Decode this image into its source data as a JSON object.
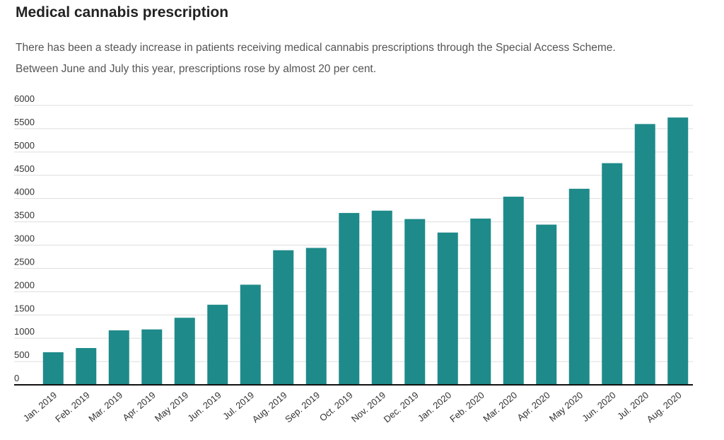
{
  "header": {
    "title": "Medical cannabis prescription",
    "subtitle_line1": "There has been a steady increase in patients receiving medical cannabis prescriptions through the Special Access Scheme.",
    "subtitle_line2": "Between June and July this year, prescriptions rose by almost 20 per cent."
  },
  "colors": {
    "bar": "#1f8a8a",
    "grid": "#dddddd",
    "axis": "#111111"
  },
  "chart_data": {
    "type": "bar",
    "title": "Medical cannabis prescription",
    "xlabel": "",
    "ylabel": "",
    "ylim": [
      0,
      6000
    ],
    "yticks": [
      0,
      500,
      1000,
      1500,
      2000,
      2500,
      3000,
      3500,
      4000,
      4500,
      5000,
      5500,
      6000
    ],
    "grid": true,
    "categories": [
      "Jan. 2019",
      "Feb. 2019",
      "Mar. 2019",
      "Apr. 2019",
      "May 2019",
      "Jun. 2019",
      "Jul. 2019",
      "Aug. 2019",
      "Sep. 2019",
      "Oct. 2019",
      "Nov. 2019",
      "Dec. 2019",
      "Jan. 2020",
      "Feb. 2020",
      "Mar. 2020",
      "Apr. 2020",
      "May 2020",
      "Jun. 2020",
      "Jul. 2020",
      "Aug. 2020"
    ],
    "values": [
      700,
      790,
      1170,
      1190,
      1440,
      1720,
      2150,
      2890,
      2940,
      3690,
      3740,
      3560,
      3270,
      3570,
      4040,
      3440,
      4210,
      4760,
      5600,
      5740
    ]
  }
}
